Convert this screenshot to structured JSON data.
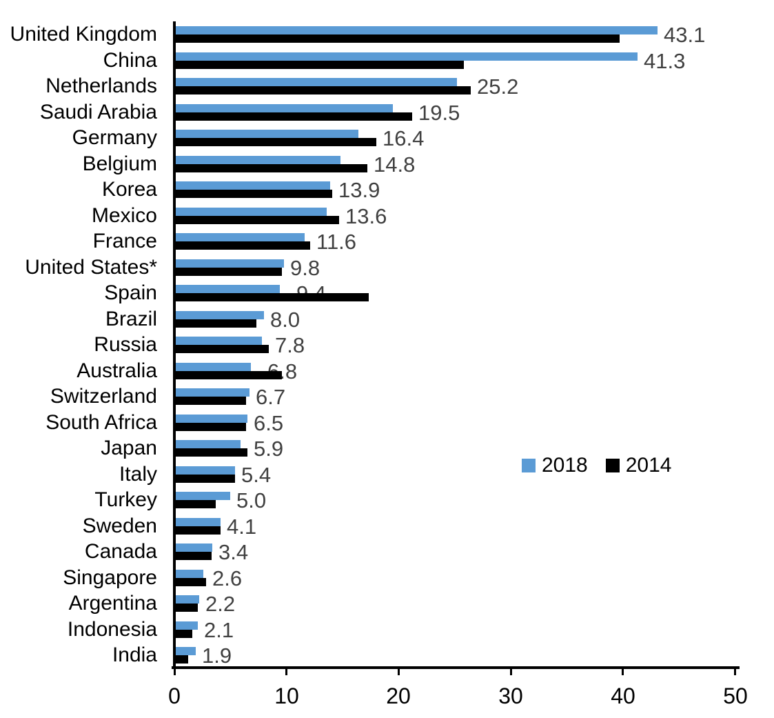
{
  "chart_data": {
    "type": "bar",
    "orientation": "horizontal",
    "title": "",
    "categories": [
      "United Kingdom",
      "China",
      "Netherlands",
      "Saudi Arabia",
      "Germany",
      "Belgium",
      "Korea",
      "Mexico",
      "France",
      "United States*",
      "Spain",
      "Brazil",
      "Russia",
      "Australia",
      "Switzerland",
      "South Africa",
      "Japan",
      "Italy",
      "Turkey",
      "Sweden",
      "Canada",
      "Singapore",
      "Argentina",
      "Indonesia",
      "India"
    ],
    "series": [
      {
        "name": "2018",
        "color": "#5B9BD5",
        "values": [
          43.1,
          41.3,
          25.2,
          19.5,
          16.4,
          14.8,
          13.9,
          13.6,
          11.6,
          9.8,
          9.4,
          8.0,
          7.8,
          6.8,
          6.7,
          6.5,
          5.9,
          5.4,
          5.0,
          4.1,
          3.4,
          2.6,
          2.2,
          2.1,
          1.9
        ],
        "data_labels": [
          "43.1",
          "41.3",
          "25.2",
          "19.5",
          "16.4",
          "14.8",
          "13.9",
          "13.6",
          "11.6",
          "9.8",
          "9.4",
          "8.0",
          "7.8",
          "6.8",
          "6.7",
          "6.5",
          "5.9",
          "5.4",
          "5.0",
          "4.1",
          "3.4",
          "2.6",
          "2.2",
          "2.1",
          "1.9"
        ]
      },
      {
        "name": "2014",
        "color": "#000000",
        "values": [
          39.7,
          25.8,
          26.4,
          21.2,
          18.0,
          17.2,
          14.1,
          14.7,
          12.1,
          9.6,
          17.3,
          7.3,
          8.4,
          9.6,
          6.4,
          6.4,
          6.5,
          5.4,
          3.7,
          4.1,
          3.3,
          2.8,
          2.1,
          1.6,
          1.2
        ],
        "note": "unlabeled in chart; values estimated from bar lengths"
      }
    ],
    "xlim": [
      0,
      50
    ],
    "x_ticks": [
      "0",
      "10",
      "20",
      "30",
      "40",
      "50"
    ],
    "grid": false,
    "legend": {
      "position": "center-right",
      "items": [
        {
          "label": "2018",
          "color": "#5B9BD5"
        },
        {
          "label": "2014",
          "color": "#000000"
        }
      ]
    },
    "value_label_color": "#404040"
  }
}
